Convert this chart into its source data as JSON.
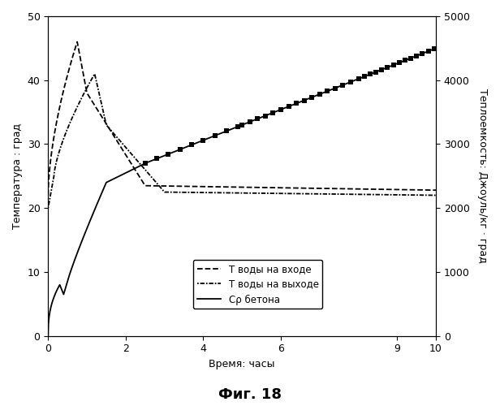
{
  "title": "",
  "xlabel": "Время: часы",
  "ylabel_left": "Температура : град",
  "ylabel_right": "Теплоемкость: Джоуль/кг · град",
  "fig_label": "Фиг. 18",
  "xlim": [
    0,
    10
  ],
  "ylim_left": [
    0,
    50
  ],
  "ylim_right": [
    0,
    5000
  ],
  "xticks": [
    0,
    2,
    4,
    6,
    9,
    10
  ],
  "yticks_left": [
    0,
    10,
    20,
    30,
    40,
    50
  ],
  "yticks_right": [
    0,
    1000,
    2000,
    3000,
    4000,
    5000
  ],
  "legend_entries": [
    "T воды на входе",
    "T воды на выходе",
    "Сρ бетона"
  ],
  "background_color": "#ffffff",
  "line_color": "#000000"
}
